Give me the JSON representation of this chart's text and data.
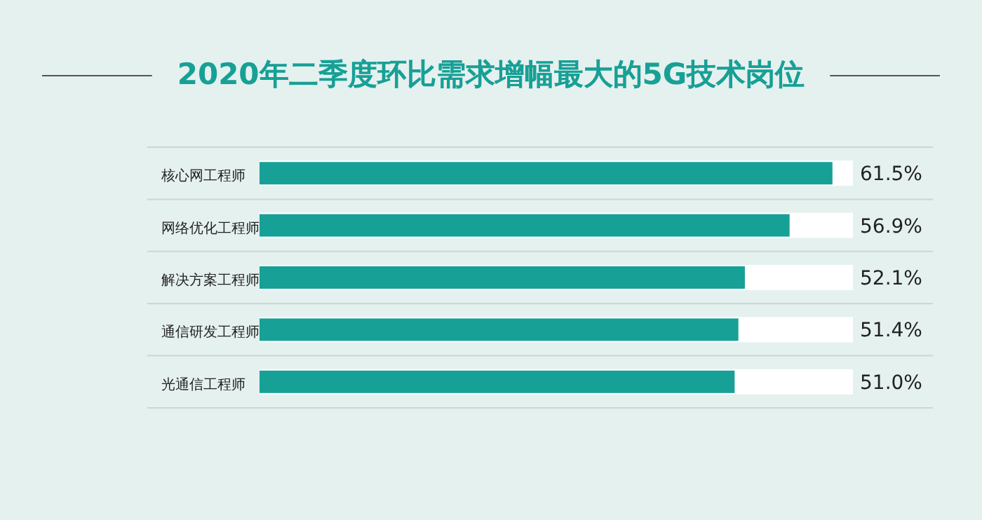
{
  "chart_data": {
    "type": "bar",
    "orientation": "horizontal",
    "title": "2020年二季度环比需求增幅最大的5G技术岗位",
    "categories": [
      "核心网工程师",
      "网络优化工程师",
      "解决方案工程师",
      "通信研发工程师",
      "光通信工程师"
    ],
    "values": [
      61.5,
      56.9,
      52.1,
      51.4,
      51.0
    ],
    "value_labels": [
      "61.5%",
      "56.9%",
      "52.1%",
      "51.4%",
      "51.0%"
    ],
    "color": "#17a096",
    "xlim": [
      0,
      63.7
    ],
    "tick_labels": "y"
  }
}
